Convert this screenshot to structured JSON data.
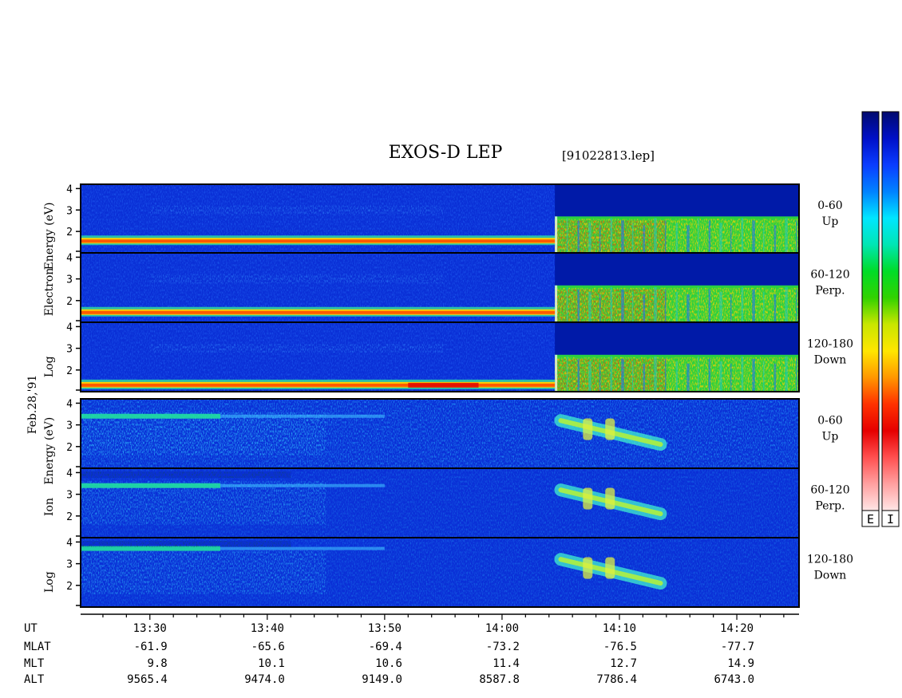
{
  "title": "EXOS-D LEP",
  "file_label": "[91022813.lep]",
  "date_label": "Feb.28,'91",
  "colorbar_labels": [
    "E",
    "I"
  ],
  "colorbar_colors": [
    "#000a6e",
    "#0010c8",
    "#0a3cff",
    "#0082ff",
    "#00e6ff",
    "#00e6b4",
    "#00dc28",
    "#32d200",
    "#c8e600",
    "#ffe600",
    "#ff9600",
    "#ff3200",
    "#e60000",
    "#ff5050",
    "#ffa0a0",
    "#ffe6e6"
  ],
  "panel_groups": [
    {
      "label_lines": [
        "Log",
        "Electron",
        "Energy (eV)"
      ]
    },
    {
      "label_lines": [
        "Log",
        "Ion",
        "Energy (eV)"
      ]
    }
  ],
  "panel_labels": [
    {
      "line1": "0-60",
      "line2": "Up"
    },
    {
      "line1": "60-120",
      "line2": "Perp."
    },
    {
      "line1": "120-180",
      "line2": "Down"
    },
    {
      "line1": "0-60",
      "line2": "Up"
    },
    {
      "line1": "60-120",
      "line2": "Perp."
    },
    {
      "line1": "120-180",
      "line2": "Down"
    }
  ],
  "footer": {
    "row_labels": [
      "UT",
      "MLAT",
      "MLT",
      "ALT"
    ],
    "columns": [
      {
        "UT": "13:30",
        "MLAT": "-61.9",
        "MLT": "9.8",
        "ALT": "9565.4"
      },
      {
        "UT": "13:40",
        "MLAT": "-65.6",
        "MLT": "10.1",
        "ALT": "9474.0"
      },
      {
        "UT": "13:50",
        "MLAT": "-69.4",
        "MLT": "10.6",
        "ALT": "9149.0"
      },
      {
        "UT": "14:00",
        "MLAT": "-73.2",
        "MLT": "11.4",
        "ALT": "8587.8"
      },
      {
        "UT": "14:10",
        "MLAT": "-76.5",
        "MLT": "12.7",
        "ALT": "7786.4"
      },
      {
        "UT": "14:20",
        "MLAT": "-77.7",
        "MLT": "14.9",
        "ALT": "6743.0"
      }
    ]
  },
  "chart_data": {
    "type": "heatmap",
    "title": "EXOS-D LEP",
    "x_axis": {
      "unit": "UT minutes after 13:00",
      "range": [
        24.1,
        85.3
      ],
      "major_ticks": [
        30,
        40,
        50,
        60,
        70,
        80
      ],
      "tick_labels": [
        "13:30",
        "13:40",
        "13:50",
        "14:00",
        "14:10",
        "14:20"
      ],
      "minor_tick_step": 2
    },
    "y_axis": {
      "label": "Log Energy (eV)",
      "range": [
        1,
        4.2
      ],
      "ticks": [
        2,
        3,
        4
      ]
    },
    "panels": [
      {
        "species": "Electron",
        "pitch_angle": "0-60",
        "direction": "Up",
        "features": {
          "low_band_logE": 1.55,
          "low_band_end_ut": 64.5,
          "burst_start_ut": 64.5,
          "burst_top_logE": 2.7
        }
      },
      {
        "species": "Electron",
        "pitch_angle": "60-120",
        "direction": "Perp.",
        "features": {
          "low_band_logE": 1.45,
          "low_band_end_ut": 64.5,
          "burst_start_ut": 64.5,
          "burst_top_logE": 2.7
        }
      },
      {
        "species": "Electron",
        "pitch_angle": "120-180",
        "direction": "Down",
        "features": {
          "low_band_logE": 1.3,
          "low_band_end_ut": 64.5,
          "burst_start_ut": 64.5,
          "burst_top_logE": 2.7
        }
      },
      {
        "species": "Ion",
        "pitch_angle": "0-60",
        "direction": "Up",
        "features": {
          "hot_band_logE": 3.4,
          "dispersion_ut": [
            65,
            73.5
          ],
          "dispersion_logE": [
            3.2,
            2.1
          ]
        }
      },
      {
        "species": "Ion",
        "pitch_angle": "60-120",
        "direction": "Perp.",
        "features": {
          "hot_band_logE": 3.4,
          "dispersion_ut": [
            65,
            73.5
          ],
          "dispersion_logE": [
            3.2,
            2.1
          ]
        }
      },
      {
        "species": "Ion",
        "pitch_angle": "120-180",
        "direction": "Down",
        "features": {
          "hot_band_logE": 3.7,
          "dispersion_ut": [
            65,
            73.5
          ],
          "dispersion_logE": [
            3.2,
            2.1
          ]
        }
      }
    ]
  }
}
